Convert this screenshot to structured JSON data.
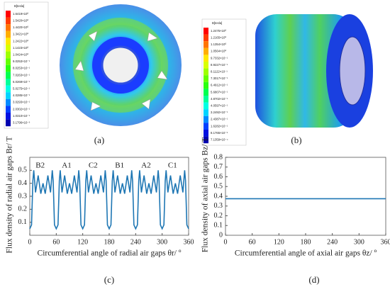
{
  "figures": [
    {
      "label": "(a)",
      "legend_title": "B[tesla]",
      "legend": [
        "1.6419×10⁰",
        "1.5420×10⁰",
        "1.4420×10⁰",
        "1.3421×10⁰",
        "1.2422×10⁰",
        "1.1423×10⁰",
        "1.0424×10⁰",
        "9.0253×10⁻¹",
        "8.0253×10⁻¹",
        "7.0263×10⁻¹",
        "6.0269×10⁻¹",
        "5.0275×10⁻¹",
        "4.0285×10⁻¹",
        "3.0293×10⁻¹",
        "2.0302×10⁻¹",
        "1.0310×10⁻¹",
        "3.1796×10⁻³"
      ]
    },
    {
      "label": "(b)",
      "legend_title": "B[tesla]",
      "legend": [
        "1.2475×10⁰",
        "1.2165×10⁰",
        "1.1354×10⁰",
        "1.0564×10⁰",
        "9.7332×10⁻¹",
        "8.9227×10⁻¹",
        "8.1122×10⁻¹",
        "7.3017×10⁻¹",
        "6.4912×10⁻¹",
        "5.6807×10⁻¹",
        "4.8702×10⁻¹",
        "4.0597×10⁻¹",
        "3.2492×10⁻¹",
        "2.4387×10⁻¹",
        "1.6282×10⁻¹",
        "8.1765×10⁻²",
        "7.1359×10⁻⁴"
      ]
    }
  ],
  "chart_data": [
    {
      "type": "line",
      "label": "(c)",
      "x_label": "Circumferential angle of radial air gaps θr/ º",
      "y_label": "Flux density of radial air gaps Br/ T",
      "annotations": [
        "B2",
        "A1",
        "C2",
        "B1",
        "A2",
        "C1"
      ],
      "color": "#1f77b4",
      "xlim": [
        0,
        360
      ],
      "xticks": [
        0,
        60,
        120,
        180,
        240,
        300,
        360
      ],
      "ylim": [
        0,
        0.6
      ],
      "yticks": [
        0.1,
        0.2,
        0.3,
        0.4,
        0.5
      ],
      "x": [
        0,
        4,
        7,
        9,
        13,
        19,
        25,
        30,
        35,
        41,
        47,
        51,
        53,
        56,
        60,
        64,
        67,
        69,
        73,
        79,
        85,
        90,
        95,
        101,
        107,
        111,
        113,
        116,
        120,
        124,
        127,
        129,
        133,
        139,
        145,
        150,
        155,
        161,
        167,
        171,
        173,
        176,
        180,
        184,
        187,
        189,
        193,
        199,
        205,
        210,
        215,
        221,
        227,
        231,
        233,
        236,
        240,
        244,
        247,
        249,
        253,
        259,
        265,
        270,
        275,
        281,
        287,
        291,
        293,
        296,
        300,
        304,
        307,
        309,
        313,
        319,
        325,
        330,
        335,
        341,
        347,
        351,
        353,
        356,
        360
      ],
      "values": [
        0.05,
        0.08,
        0.42,
        0.5,
        0.33,
        0.46,
        0.32,
        0.4,
        0.32,
        0.46,
        0.33,
        0.5,
        0.42,
        0.08,
        0.05,
        0.08,
        0.42,
        0.5,
        0.33,
        0.46,
        0.32,
        0.4,
        0.32,
        0.46,
        0.33,
        0.5,
        0.42,
        0.08,
        0.05,
        0.08,
        0.42,
        0.5,
        0.33,
        0.46,
        0.32,
        0.4,
        0.32,
        0.46,
        0.33,
        0.5,
        0.42,
        0.08,
        0.05,
        0.08,
        0.42,
        0.5,
        0.33,
        0.46,
        0.32,
        0.4,
        0.32,
        0.46,
        0.33,
        0.5,
        0.42,
        0.08,
        0.05,
        0.08,
        0.42,
        0.5,
        0.33,
        0.46,
        0.32,
        0.4,
        0.32,
        0.46,
        0.33,
        0.5,
        0.42,
        0.08,
        0.05,
        0.08,
        0.42,
        0.5,
        0.33,
        0.46,
        0.32,
        0.4,
        0.32,
        0.46,
        0.33,
        0.5,
        0.42,
        0.08,
        0.05
      ]
    },
    {
      "type": "line",
      "label": "(d)",
      "x_label": "Circumferential angle of axial air gaps θz/ º",
      "y_label": "Flux density of axial air gaps Bz/ T",
      "color": "#1f77b4",
      "xlim": [
        0,
        360
      ],
      "xticks": [
        0,
        60,
        120,
        180,
        240,
        300,
        360
      ],
      "ylim": [
        0,
        0.8
      ],
      "yticks": [
        0,
        0.1,
        0.2,
        0.3,
        0.4,
        0.5,
        0.6,
        0.7,
        0.8
      ],
      "x": [
        0,
        360
      ],
      "values": [
        0.375,
        0.375
      ]
    }
  ]
}
